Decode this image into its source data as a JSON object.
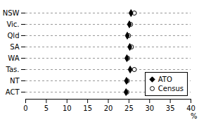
{
  "chart_data": {
    "type": "dot",
    "orientation": "horizontal",
    "categories": [
      "NSW",
      "Vic.",
      "Qld",
      "SA",
      "WA",
      "Tas.",
      "NT",
      "ACT"
    ],
    "series": [
      {
        "name": "ATO",
        "color": "#000000",
        "marker": "diamond",
        "values": [
          25.5,
          25.1,
          24.6,
          25.2,
          24.5,
          25.3,
          24.4,
          24.3
        ]
      },
      {
        "name": "Census",
        "color": "#000000",
        "marker": "open_circle",
        "values": [
          26.3,
          25.4,
          24.9,
          25.6,
          24.7,
          26.3,
          24.6,
          24.5
        ]
      }
    ],
    "xlabel": "%",
    "xlim": [
      0,
      40
    ],
    "xticks": [
      0,
      5,
      10,
      15,
      20,
      25,
      30,
      35,
      40
    ],
    "grid": true,
    "legend": "lower right"
  }
}
